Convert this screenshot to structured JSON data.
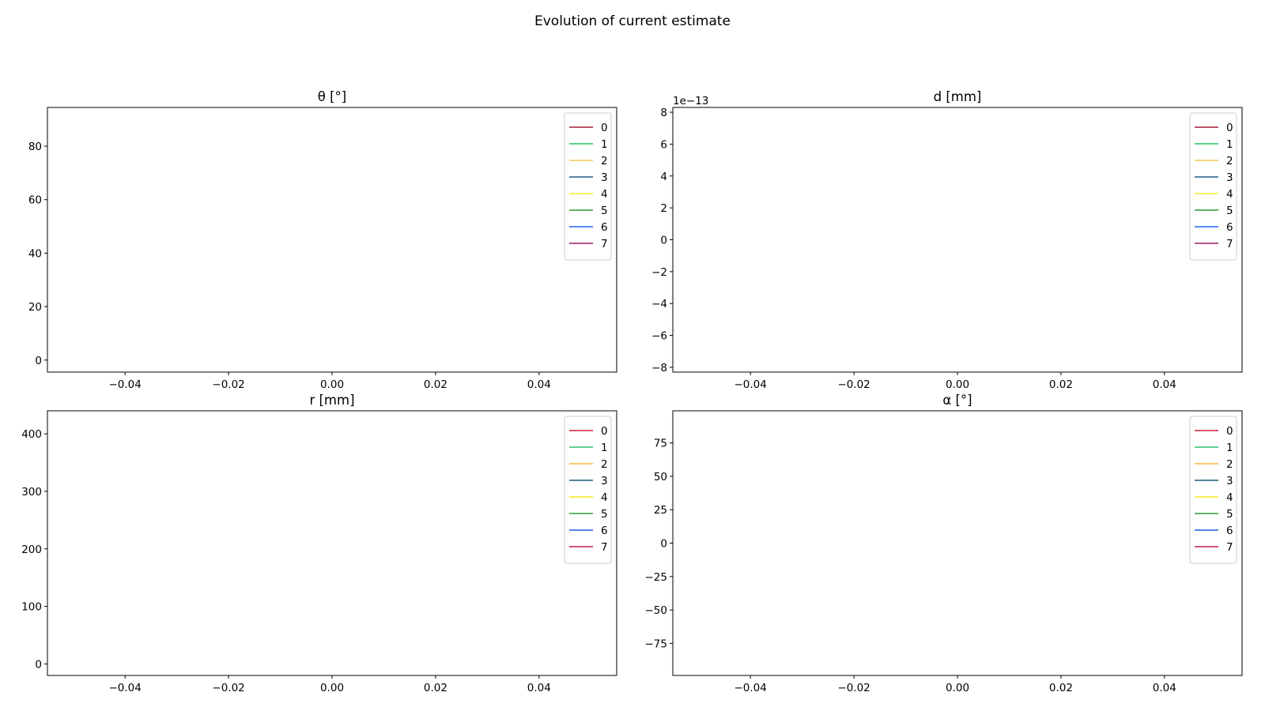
{
  "figure": {
    "title": "Evolution of current estimate"
  },
  "chart_data": [
    {
      "type": "line",
      "title": "θ [°]",
      "xlim": [
        -0.055,
        0.055
      ],
      "xticks": [
        -0.04,
        -0.02,
        0.0,
        0.02,
        0.04
      ],
      "xtick_labels": [
        "−0.04",
        "−0.02",
        "0.00",
        "0.02",
        "0.04"
      ],
      "ylim": [
        -4.5,
        94.5
      ],
      "yticks": [
        0,
        20,
        40,
        60,
        80
      ],
      "ytick_labels": [
        "0",
        "20",
        "40",
        "60",
        "80"
      ],
      "y_offset_label": "",
      "grid": false,
      "legend": "upper-right",
      "series": [
        {
          "name": "0",
          "color": "#a31f3a",
          "values": []
        },
        {
          "name": "1",
          "color": "#22c55e",
          "values": []
        },
        {
          "name": "2",
          "color": "#f2c955",
          "values": []
        },
        {
          "name": "3",
          "color": "#1f5f8b",
          "values": []
        },
        {
          "name": "4",
          "color": "#f6e93a",
          "values": []
        },
        {
          "name": "5",
          "color": "#2e9b2e",
          "values": []
        },
        {
          "name": "6",
          "color": "#2563eb",
          "values": []
        },
        {
          "name": "7",
          "color": "#9b1b5e",
          "values": []
        }
      ]
    },
    {
      "type": "line",
      "title": "d [mm]",
      "xlim": [
        -0.055,
        0.055
      ],
      "xticks": [
        -0.04,
        -0.02,
        0.0,
        0.02,
        0.04
      ],
      "xtick_labels": [
        "−0.04",
        "−0.02",
        "0.00",
        "0.02",
        "0.04"
      ],
      "ylim": [
        -8.3,
        8.3
      ],
      "yticks": [
        -8,
        -6,
        -4,
        -2,
        0,
        2,
        4,
        6,
        8
      ],
      "ytick_labels": [
        "−8",
        "−6",
        "−4",
        "−2",
        "0",
        "2",
        "4",
        "6",
        "8"
      ],
      "y_offset_label": "1e−13",
      "grid": false,
      "legend": "upper-right",
      "series": [
        {
          "name": "0",
          "color": "#a31f3a",
          "values": []
        },
        {
          "name": "1",
          "color": "#22c55e",
          "values": []
        },
        {
          "name": "2",
          "color": "#f2c955",
          "values": []
        },
        {
          "name": "3",
          "color": "#1f5f8b",
          "values": []
        },
        {
          "name": "4",
          "color": "#f6e93a",
          "values": []
        },
        {
          "name": "5",
          "color": "#2e9b2e",
          "values": []
        },
        {
          "name": "6",
          "color": "#2563eb",
          "values": []
        },
        {
          "name": "7",
          "color": "#9b1b5e",
          "values": []
        }
      ]
    },
    {
      "type": "line",
      "title": "r [mm]",
      "xlim": [
        -0.055,
        0.055
      ],
      "xticks": [
        -0.04,
        -0.02,
        0.0,
        0.02,
        0.04
      ],
      "xtick_labels": [
        "−0.04",
        "−0.02",
        "0.00",
        "0.02",
        "0.04"
      ],
      "ylim": [
        -20,
        440
      ],
      "yticks": [
        0,
        100,
        200,
        300,
        400
      ],
      "ytick_labels": [
        "0",
        "100",
        "200",
        "300",
        "400"
      ],
      "y_offset_label": "",
      "grid": false,
      "legend": "upper-right",
      "series": [
        {
          "name": "0",
          "color": "#c8203c",
          "values": []
        },
        {
          "name": "1",
          "color": "#2ec26a",
          "values": []
        },
        {
          "name": "2",
          "color": "#f6b73c",
          "values": []
        },
        {
          "name": "3",
          "color": "#1d5a78",
          "values": []
        },
        {
          "name": "4",
          "color": "#f7ec1f",
          "values": []
        },
        {
          "name": "5",
          "color": "#2a9d3a",
          "values": []
        },
        {
          "name": "6",
          "color": "#1d5fe0",
          "values": []
        },
        {
          "name": "7",
          "color": "#c2185b",
          "values": []
        }
      ]
    },
    {
      "type": "line",
      "title": "α [°]",
      "xlim": [
        -0.055,
        0.055
      ],
      "xticks": [
        -0.04,
        -0.02,
        0.0,
        0.02,
        0.04
      ],
      "xtick_labels": [
        "−0.04",
        "−0.02",
        "0.00",
        "0.02",
        "0.04"
      ],
      "ylim": [
        -99,
        99
      ],
      "yticks": [
        -75,
        -50,
        -25,
        0,
        25,
        50,
        75
      ],
      "ytick_labels": [
        "−75",
        "−50",
        "−25",
        "0",
        "25",
        "50",
        "75"
      ],
      "y_offset_label": "",
      "grid": false,
      "legend": "upper-right",
      "series": [
        {
          "name": "0",
          "color": "#c8203c",
          "values": []
        },
        {
          "name": "1",
          "color": "#2ec26a",
          "values": []
        },
        {
          "name": "2",
          "color": "#f6b73c",
          "values": []
        },
        {
          "name": "3",
          "color": "#1d5a78",
          "values": []
        },
        {
          "name": "4",
          "color": "#f7ec1f",
          "values": []
        },
        {
          "name": "5",
          "color": "#2a9d3a",
          "values": []
        },
        {
          "name": "6",
          "color": "#1d5fe0",
          "values": []
        },
        {
          "name": "7",
          "color": "#c2185b",
          "values": []
        }
      ]
    }
  ]
}
